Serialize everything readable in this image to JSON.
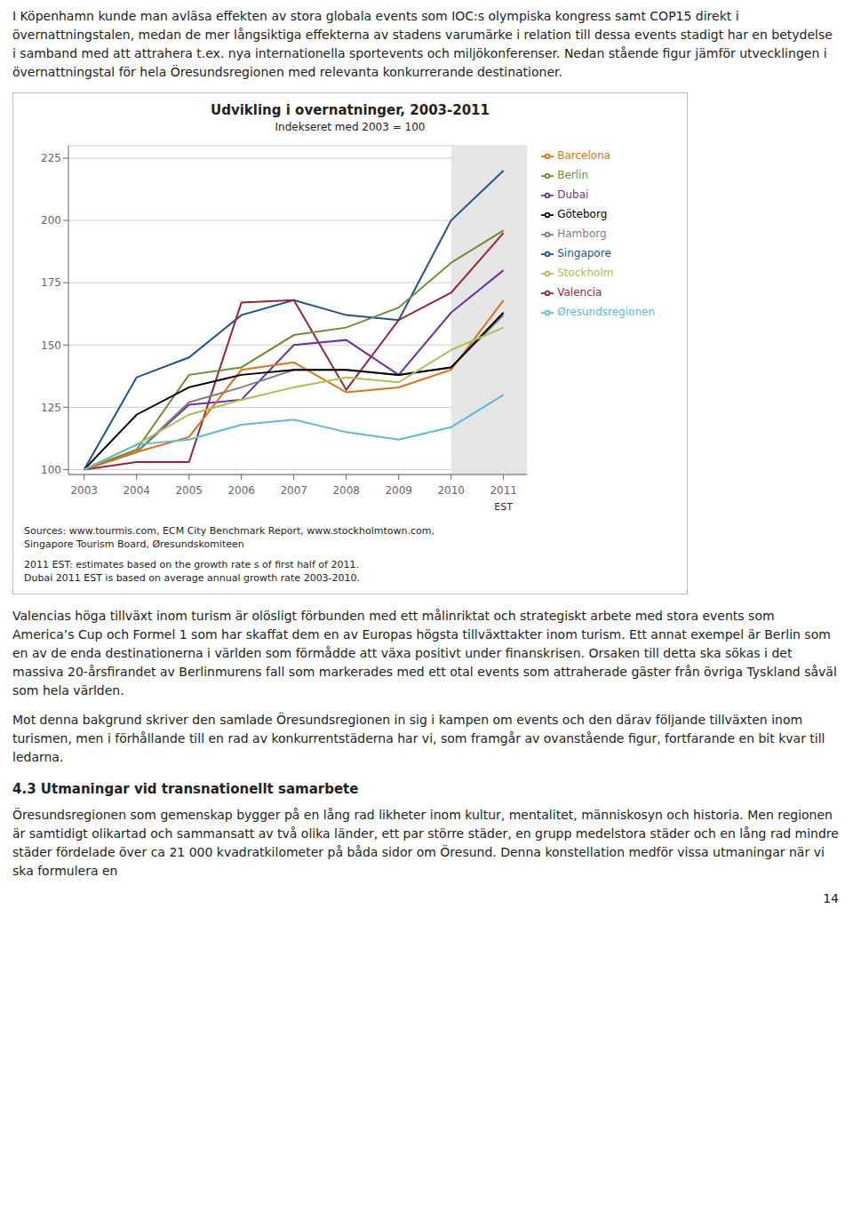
{
  "chart_data": {
    "type": "line",
    "title": "Udvikling i overnatninger, 2003-2011",
    "subtitle": "Indekseret med 2003 = 100",
    "x": [
      2003,
      2004,
      2005,
      2006,
      2007,
      2008,
      2009,
      2010,
      2011
    ],
    "series": [
      {
        "name": "Singapore",
        "color": "#1f4e9c",
        "values": [
          100,
          137,
          145,
          162,
          168,
          162,
          160,
          200,
          220
        ]
      },
      {
        "name": "Valencia",
        "color": "#9b2335",
        "values": [
          100,
          103,
          103,
          167,
          168,
          132,
          160,
          171,
          195
        ]
      },
      {
        "name": "Berlin",
        "color": "#6a8f2f",
        "values": [
          100,
          108,
          138,
          141,
          154,
          157,
          165,
          183,
          196
        ]
      },
      {
        "name": "Dubai",
        "color": "#7030a0",
        "values": [
          100,
          107,
          126,
          128,
          150,
          152,
          138,
          163,
          180
        ]
      },
      {
        "name": "Hamborg",
        "color": "#808080",
        "values": [
          100,
          107,
          127,
          133,
          140,
          140,
          138,
          141,
          162
        ]
      },
      {
        "name": "Barcelona",
        "color": "#e07010",
        "values": [
          100,
          107,
          113,
          140,
          143,
          131,
          133,
          140,
          168
        ]
      },
      {
        "name": "Göteborg",
        "color": "#000000",
        "values": [
          100,
          122,
          133,
          138,
          140,
          140,
          138,
          141,
          163
        ]
      },
      {
        "name": "Stockholm",
        "color": "#aac050",
        "values": [
          100,
          110,
          122,
          128,
          133,
          137,
          135,
          148,
          157
        ]
      },
      {
        "name": "Øresundsregionen",
        "color": "#5bbcd0",
        "values": [
          100,
          110,
          112,
          118,
          120,
          115,
          112,
          117,
          130
        ]
      }
    ],
    "xlim": [
      2002.7,
      2011.45
    ],
    "xticks": [
      2003,
      2004,
      2005,
      2006,
      2007,
      2008,
      2009,
      2010,
      2011
    ],
    "ylim": [
      98,
      230
    ],
    "yticks": [
      100,
      125,
      150,
      175,
      200,
      225
    ],
    "shaded": [
      2010,
      2011.45
    ],
    "annotations": [
      {
        "x": 2011,
        "text": "EST"
      }
    ],
    "notes": [
      "Sources: www.tourmis.com, ECM City Benchmark Report, www.stockholmtown.com,",
      "Singapore Tourism Board, Øresundskomiteen",
      "2011 EST: estimates based on the growth rate s of first half of 2011.",
      "Dubai 2011 EST is based on average annual growth rate 2003-2010."
    ],
    "grid": true,
    "legend": "right"
  },
  "text_before": [
    "I Köpenhamn kunde man avläsa effekten av stora globala events som IOC:s olympiska kongress samt COP15 direkt i övernattningstalen, medan de mer långsiktiga effekterna av stadens varumärke i relation till dessa events stadigt har en betydelse i samband med att attrahera t.ex. nya internationella sportevents och miljökonferenser. Nedan stående figur jämför utvecklingen i övernattningstal för hela Öresundsregionen med relevanta konkurrerande destinationer."
  ],
  "text_after": [
    "Valencias höga tillväxt inom turism är olösligt förbunden med ett målinriktat och strategiskt arbete med stora events som America’s Cup och Formel 1 som har skaffat dem en av Europas högsta tillväxttakter inom turism. Ett annat exempel är Berlin som en av de enda destinationerna i världen som förmådde att växa positivt under finanskrisen. Orsaken till detta ska sökas i det massiva 20-årsfirandet av Berlinmurens fall som markerades med ett otal events som attraherade gäster från övriga Tyskland såväl som hela världen.",
    "Mot denna bakgrund skriver den samlade Öresundsregionen in sig i kampen om events och den därav följande tillväxten inom turismen, men i förhållande till en rad av konkurrentstäderna har vi, som framgår av ovanstående figur, fortfarande en bit kvar till ledarna."
  ],
  "heading": "4.3 Utmaningar vid transnationellt samarbete",
  "text_end": [
    "Öresundsregionen som gemenskap bygger på en lång rad likheter inom kultur, mentalitet, människosyn och historia. Men regionen är samtidigt olikartad och sammansatt av två olika länder, ett par större städer, en grupp medelstora städer och en lång rad mindre städer fördelade över ca 21 000 kvadratkilometer på båda sidor om Öresund. Denna konstellation medför vissa utmaningar när vi ska formulera en"
  ],
  "page_number": "14"
}
